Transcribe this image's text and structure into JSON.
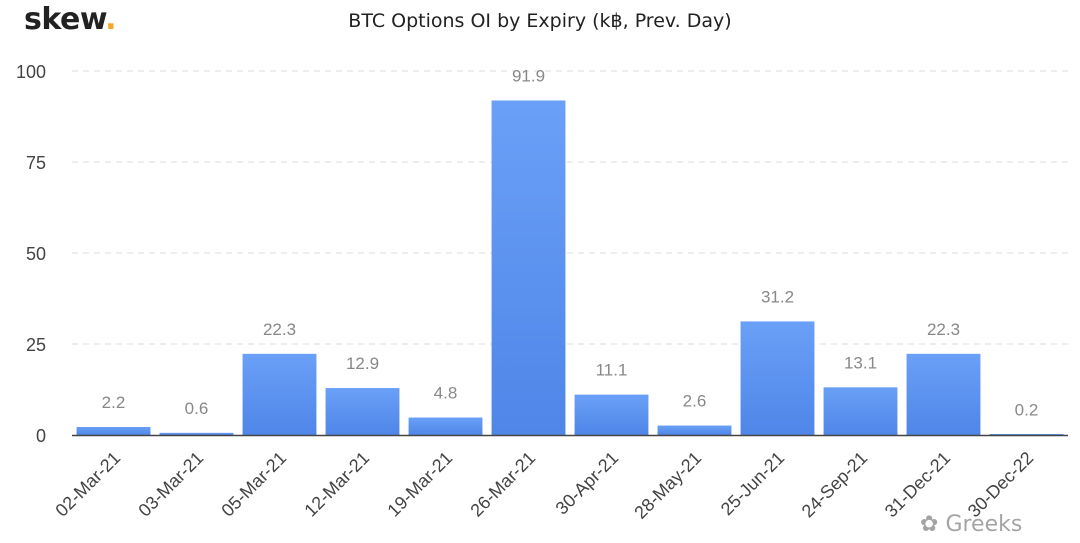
{
  "brand": {
    "name": "skew",
    "dot": "."
  },
  "watermark": "Greeks",
  "colors": {
    "bar_top": "#6aa0f7",
    "bar_bottom": "#4f86e8",
    "label": "#888888",
    "grid": "#dddddd",
    "axis": "#444444"
  },
  "chart_data": {
    "type": "bar",
    "title": "BTC Options OI by Expiry (k฿, Prev. Day)",
    "xlabel": "",
    "ylabel": "",
    "categories": [
      "02-Mar-21",
      "03-Mar-21",
      "05-Mar-21",
      "12-Mar-21",
      "19-Mar-21",
      "26-Mar-21",
      "30-Apr-21",
      "28-May-21",
      "25-Jun-21",
      "24-Sep-21",
      "31-Dec-21",
      "30-Dec-22"
    ],
    "values": [
      2.2,
      0.6,
      22.3,
      12.9,
      4.8,
      91.9,
      11.1,
      2.6,
      31.2,
      13.1,
      22.3,
      0.2
    ],
    "value_labels": [
      "2.2",
      "0.6",
      "22.3",
      "12.9",
      "4.8",
      "91.9",
      "11.1",
      "2.6",
      "31.2",
      "13.1",
      "22.3",
      "0.2"
    ],
    "ylim": [
      0,
      100
    ],
    "yticks": [
      "0",
      "25",
      "50",
      "75",
      "100"
    ],
    "ytick_values": [
      0,
      25,
      50,
      75,
      100
    ],
    "grid": true,
    "legend": "none"
  }
}
